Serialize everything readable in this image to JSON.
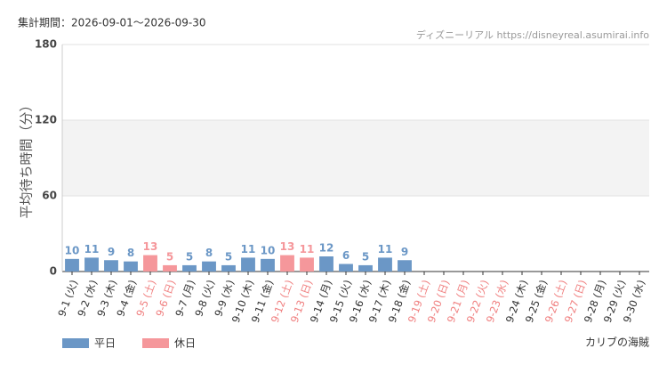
{
  "chart_data": {
    "type": "bar",
    "period": "集計期間：2026-09-01〜2026-09-30",
    "source": "ディズニーリアル https://disneyreal.asumirai.info",
    "attraction": "カリブの海賊",
    "y_label": "平均待ち時間（分）",
    "categories": [
      "9-1 (火)",
      "9-2 (水)",
      "9-3 (木)",
      "9-4 (金)",
      "9-5 (土)",
      "9-6 (日)",
      "9-7 (月)",
      "9-8 (火)",
      "9-9 (水)",
      "9-10 (木)",
      "9-11 (金)",
      "9-12 (土)",
      "9-13 (日)",
      "9-14 (月)",
      "9-15 (火)",
      "9-16 (水)",
      "9-17 (木)",
      "9-18 (金)",
      "9-19 (土)",
      "9-20 (日)",
      "9-21 (月)",
      "9-22 (火)",
      "9-23 (水)",
      "9-24 (木)",
      "9-25 (金)",
      "9-26 (土)",
      "9-27 (日)",
      "9-28 (月)",
      "9-29 (火)",
      "9-30 (水)"
    ],
    "category_colors": [
      "#333",
      "#333",
      "#333",
      "#333",
      "#f08080",
      "#f08080",
      "#333",
      "#333",
      "#333",
      "#333",
      "#333",
      "#f08080",
      "#f08080",
      "#333",
      "#333",
      "#333",
      "#333",
      "#333",
      "#f08080",
      "#f08080",
      "#f08080",
      "#f08080",
      "#f08080",
      "#333",
      "#333",
      "#f08080",
      "#f08080",
      "#333",
      "#333",
      "#333"
    ],
    "series": [
      {
        "name": "平日",
        "color": "#6b97c6",
        "values": [
          10,
          11,
          9,
          8,
          null,
          null,
          5,
          8,
          5,
          11,
          10,
          null,
          null,
          12,
          6,
          5,
          11,
          9,
          null,
          null,
          null,
          null,
          null,
          null,
          null,
          null,
          null,
          null,
          null,
          null
        ]
      },
      {
        "name": "休日",
        "color": "#f5979b",
        "values": [
          null,
          null,
          null,
          null,
          13,
          5,
          null,
          null,
          null,
          null,
          null,
          13,
          11,
          null,
          null,
          null,
          null,
          null,
          null,
          null,
          null,
          null,
          null,
          null,
          null,
          null,
          null,
          null,
          null,
          null
        ]
      }
    ],
    "ylim": [
      0,
      180
    ],
    "yticks": [
      0,
      60,
      120,
      180
    ],
    "grid": true
  }
}
